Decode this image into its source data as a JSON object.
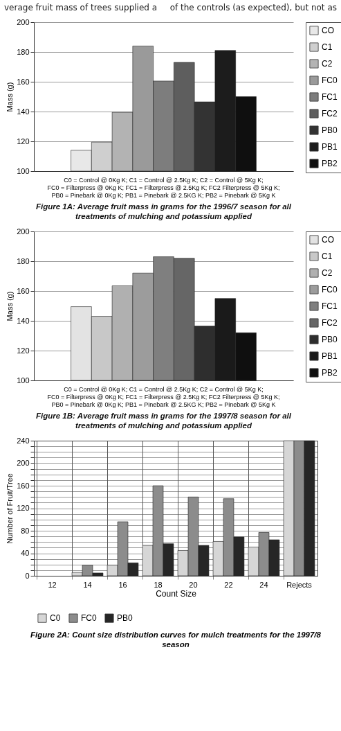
{
  "chart_data": [
    {
      "type": "other",
      "annotations": [
        "verage fruit mass of trees supplied a",
        "of the controls (as expected), but not as"
      ]
    },
    {
      "type": "bar",
      "title": "Figure 1A: Average fruit mass in grams for the 1996/7 season for all treatments of mulching and potassium applied",
      "ylabel": "Mass (g)",
      "categories": [
        null
      ],
      "series": [
        {
          "name": "CO",
          "color": "#e8e8e8",
          "values": [
            114
          ]
        },
        {
          "name": "C1",
          "color": "#cfcfcf",
          "values": [
            119.5
          ]
        },
        {
          "name": "C2",
          "color": "#b3b3b3",
          "values": [
            139.5
          ]
        },
        {
          "name": "FC0",
          "color": "#9a9a9a",
          "values": [
            184
          ]
        },
        {
          "name": "FC1",
          "color": "#7d7d7d",
          "values": [
            160.5
          ]
        },
        {
          "name": "FC2",
          "color": "#5e5e5e",
          "values": [
            173
          ]
        },
        {
          "name": "PB0",
          "color": "#333333",
          "values": [
            146.5
          ]
        },
        {
          "name": "PB1",
          "color": "#1c1c1c",
          "values": [
            181
          ]
        },
        {
          "name": "PB2",
          "color": "#0f0f0f",
          "values": [
            150
          ]
        }
      ],
      "ylim": [
        100,
        200
      ],
      "yticks": [
        100,
        120,
        140,
        160,
        180,
        200
      ],
      "grid": "y",
      "legend": "right",
      "annotations": [
        "C0 = Control @ 0Kg K; C1 = Control @ 2.5Kg K; C2 = Control @ 5Kg K;",
        "FC0 = Filterpress @ 0Kg K; FC1 = Filterpress @ 2.5Kg K; FC2 Filterpress @ 5Kg K;",
        "PB0 = Pinebark @ 0Kg K; PB1 = Pinebark @ 2.5KG K; PB2 = Pinebark @ 5Kg K"
      ]
    },
    {
      "type": "bar",
      "title": "Figure 1B: Average fruit mass in grams for the 1997/8 season for all treatments of mulching and potassium applied",
      "ylabel": "Mass (g)",
      "categories": [
        null
      ],
      "series": [
        {
          "name": "CO",
          "color": "#e3e3e3",
          "values": [
            149.5
          ]
        },
        {
          "name": "C1",
          "color": "#c8c8c8",
          "values": [
            143
          ]
        },
        {
          "name": "C2",
          "color": "#b0b0b0",
          "values": [
            163.5
          ]
        },
        {
          "name": "FC0",
          "color": "#9c9c9c",
          "values": [
            172
          ]
        },
        {
          "name": "FC1",
          "color": "#7f7f7f",
          "values": [
            183
          ]
        },
        {
          "name": "FC2",
          "color": "#666666",
          "values": [
            182
          ]
        },
        {
          "name": "PB0",
          "color": "#2e2e2e",
          "values": [
            136.5
          ]
        },
        {
          "name": "PB1",
          "color": "#1a1a1a",
          "values": [
            155
          ]
        },
        {
          "name": "PB2",
          "color": "#0f0f0f",
          "values": [
            132
          ]
        }
      ],
      "ylim": [
        100,
        200
      ],
      "yticks": [
        100,
        120,
        140,
        160,
        180,
        200
      ],
      "grid": "y",
      "legend": "right",
      "annotations": [
        "C0 = Control @ 0Kg K; C1 = Control @ 2.5Kg K; C2 = Control @ 5Kg K;",
        "FC0 = Filterpress @ 0Kg K; FC1 = Filterpress @ 2.5Kg K; FC2 Filterpress @ 5Kg K;",
        "PB0 = Pinebark @ 0Kg K; PB1 = Pinebark @ 2.5KG K; PB2 = Pinebark @ 5Kg K"
      ]
    },
    {
      "type": "bar",
      "title": "Figure 2A: Count size distribution curves for mulch treatments for the 1997/8 season",
      "xlabel": "Count Size",
      "ylabel": "Number of Fruit/Tree",
      "categories": [
        "12",
        "14",
        "16",
        "18",
        "20",
        "22",
        "24",
        "Rejects"
      ],
      "series": [
        {
          "name": "C0",
          "color": "#d6d6d6",
          "values": [
            null,
            6,
            19,
            54,
            45,
            61,
            51,
            240
          ]
        },
        {
          "name": "FC0",
          "color": "#8c8c8c",
          "values": [
            null,
            19,
            96,
            160,
            140,
            137,
            77,
            240
          ]
        },
        {
          "name": "PB0",
          "color": "#262626",
          "values": [
            null,
            5,
            23,
            57,
            54,
            69,
            64,
            240
          ]
        }
      ],
      "ylim": [
        0,
        240
      ],
      "yticks": [
        0,
        {
          "value": 10,
          "label": null
        },
        {
          "value": 20,
          "label": null
        },
        {
          "value": 30,
          "label": null
        },
        40,
        {
          "value": 50,
          "label": null
        },
        {
          "value": 60,
          "label": null
        },
        {
          "value": 70,
          "label": null
        },
        80,
        {
          "value": 90,
          "label": null
        },
        {
          "value": 100,
          "label": null
        },
        {
          "value": 110,
          "label": null
        },
        120,
        {
          "value": 130,
          "label": null
        },
        {
          "value": 140,
          "label": null
        },
        {
          "value": 150,
          "label": null
        },
        160,
        {
          "value": 170,
          "label": null
        },
        {
          "value": 180,
          "label": null
        },
        {
          "value": 190,
          "label": null
        },
        200,
        {
          "value": 210,
          "label": null
        },
        {
          "value": 220,
          "label": null
        },
        {
          "value": 230,
          "label": null
        },
        240
      ],
      "grid": true,
      "legend": "bottom"
    }
  ]
}
